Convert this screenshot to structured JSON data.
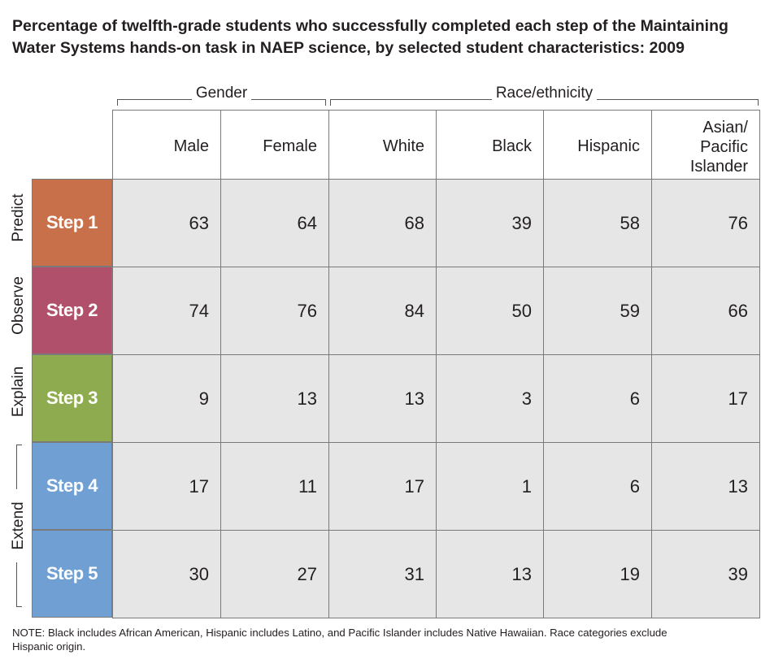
{
  "title_lines": [
    "Percentage of twelfth-grade students who successfully completed each step of the Maintaining",
    "Water Systems hands-on task in NAEP science, by selected student characteristics: 2009"
  ],
  "groups": {
    "gender": "Gender",
    "race": "Race/ethnicity"
  },
  "columns": [
    "Male",
    "Female",
    "White",
    "Black",
    "Hispanic",
    "Asian/\nPacific\nIslander"
  ],
  "side_labels": {
    "predict": "Predict",
    "observe": "Observe",
    "explain": "Explain",
    "extend": "Extend"
  },
  "colors": {
    "step1": "#c8704a",
    "step2": "#b0506a",
    "step3": "#8fab4f",
    "step4": "#6f9fd3",
    "step5": "#6f9fd3",
    "cell_bg": "#e6e6e6"
  },
  "note_lines": [
    "NOTE: Black includes African American, Hispanic includes Latino, and Pacific Islander includes Native Hawaiian. Race categories exclude",
    "Hispanic origin."
  ],
  "chart_data": {
    "type": "table",
    "title": "Percentage of twelfth-grade students who successfully completed each step of the Maintaining Water Systems hands-on task in NAEP science, by selected student characteristics: 2009",
    "column_groups": [
      {
        "name": "Gender",
        "columns": [
          "Male",
          "Female"
        ]
      },
      {
        "name": "Race/ethnicity",
        "columns": [
          "White",
          "Black",
          "Hispanic",
          "Asian/Pacific Islander"
        ]
      }
    ],
    "rows": [
      {
        "label": "Step 1",
        "stage": "Predict",
        "values": [
          "63",
          "64",
          "68",
          "39",
          "58",
          "76"
        ]
      },
      {
        "label": "Step 2",
        "stage": "Observe",
        "values": [
          "74",
          "76",
          "84",
          "50",
          "59",
          "66"
        ]
      },
      {
        "label": "Step 3",
        "stage": "Explain",
        "values": [
          "9",
          "13",
          "13",
          "3",
          "6",
          "17"
        ]
      },
      {
        "label": "Step 4",
        "stage": "Extend",
        "values": [
          "17",
          "11",
          "17",
          "1",
          "6",
          "13"
        ]
      },
      {
        "label": "Step 5",
        "stage": "Extend",
        "values": [
          "30",
          "27",
          "31",
          "13",
          "19",
          "39"
        ]
      }
    ]
  }
}
